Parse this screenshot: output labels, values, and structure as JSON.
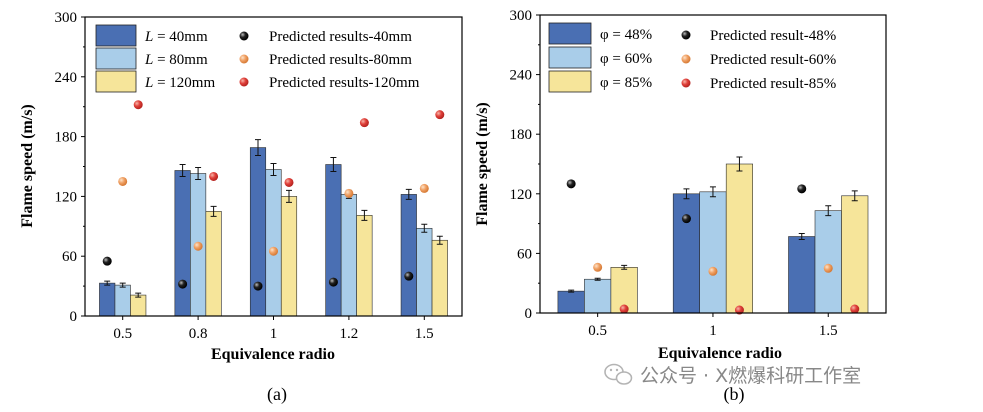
{
  "colors": {
    "s1": "#4a6fb3",
    "s2": "#a9cde9",
    "s3": "#f6e59a",
    "p1": "#111111",
    "p2": "#f0a165",
    "p3": "#e0403a"
  },
  "watermark": {
    "text": "公众号 · X燃爆科研工作室",
    "icon": "wechat-icon"
  },
  "chart_data": [
    {
      "type": "bar",
      "panel_label": "(a)",
      "xlabel": "Equivalence radio",
      "ylabel": "Flame speed (m/s)",
      "ylim": [
        0,
        300
      ],
      "yticks": [
        "0",
        "60",
        "120",
        "180",
        "240",
        "300"
      ],
      "categories": [
        "0.5",
        "0.8",
        "1",
        "1.2",
        "1.5"
      ],
      "series": [
        {
          "name": "L = 40mm",
          "prefix": "L",
          "rest": " = 40mm",
          "values": [
            33,
            146,
            169,
            152,
            122
          ],
          "errors": [
            2,
            6,
            8,
            7,
            5
          ]
        },
        {
          "name": "L = 80mm",
          "prefix": "L",
          "rest": " = 80mm",
          "values": [
            31,
            143,
            147,
            122,
            88
          ],
          "errors": [
            2,
            6,
            6,
            4,
            4
          ]
        },
        {
          "name": "L = 120mm",
          "prefix": "L",
          "rest": " = 120mm",
          "values": [
            21,
            105,
            120,
            101,
            76
          ],
          "errors": [
            2,
            5,
            6,
            5,
            4
          ]
        }
      ],
      "predicted": [
        {
          "name": "Predicted results-40mm",
          "values": [
            55,
            32,
            30,
            34,
            40
          ]
        },
        {
          "name": "Predicted results-80mm",
          "values": [
            135,
            70,
            65,
            123,
            128
          ]
        },
        {
          "name": "Predicted results-120mm",
          "values": [
            212,
            140,
            134,
            194,
            202
          ]
        }
      ]
    },
    {
      "type": "bar",
      "panel_label": "(b)",
      "xlabel": "Equivalence radio",
      "ylabel": "Flame speed (m/s)",
      "ylim": [
        0,
        300
      ],
      "yticks": [
        "0",
        "60",
        "120",
        "180",
        "240",
        "300"
      ],
      "categories": [
        "0.5",
        "1",
        "1.5"
      ],
      "series": [
        {
          "name": "φ = 48%",
          "prefix": "",
          "rest": "φ = 48%",
          "values": [
            22,
            120,
            77
          ],
          "errors": [
            1,
            5,
            3
          ]
        },
        {
          "name": "φ = 60%",
          "prefix": "",
          "rest": "φ = 60%",
          "values": [
            34,
            122,
            103
          ],
          "errors": [
            1,
            5,
            5
          ]
        },
        {
          "name": "φ = 85%",
          "prefix": "",
          "rest": "φ = 85%",
          "values": [
            46,
            150,
            118
          ],
          "errors": [
            2,
            7,
            5
          ]
        }
      ],
      "predicted": [
        {
          "name": "Predicted result-48%",
          "values": [
            130,
            95,
            125
          ]
        },
        {
          "name": "Predicted result-60%",
          "values": [
            46,
            42,
            45
          ]
        },
        {
          "name": "Predicted result-85%",
          "values": [
            4,
            3,
            4
          ]
        }
      ]
    }
  ]
}
